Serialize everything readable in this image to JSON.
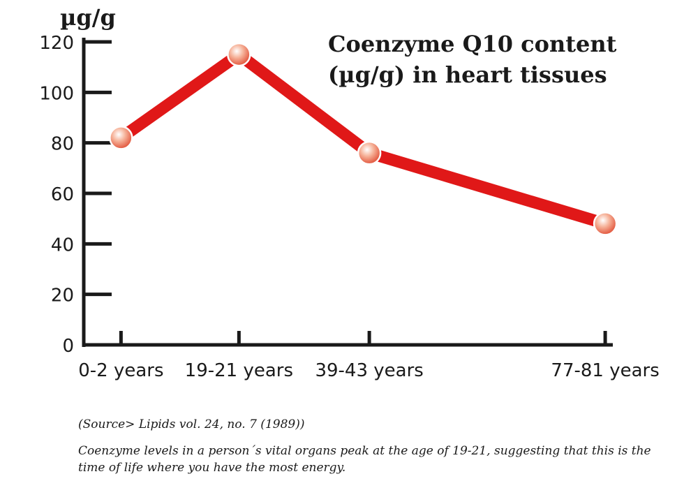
{
  "chart_data": {
    "type": "line",
    "title_lines": [
      "Coenzyme Q10 content",
      "(µg/g) in heart tissues"
    ],
    "ylabel": "µg/g",
    "xlabel": "",
    "categories": [
      "0-2 years",
      "19-21 years",
      "39-43 years",
      "77-81 years"
    ],
    "x_positions_years": [
      1,
      20,
      41,
      79
    ],
    "x_range_years": [
      -5,
      80
    ],
    "values": [
      82,
      115,
      76,
      48
    ],
    "ylim": [
      0,
      120
    ],
    "yticks": [
      0,
      20,
      40,
      60,
      80,
      100,
      120
    ],
    "grid": false,
    "legend": "none",
    "colors": {
      "line": "#e01818",
      "marker": "#f08a70",
      "axis": "#1a1a1a"
    }
  },
  "captions": {
    "source": "(Source> Lipids vol. 24, no. 7 (1989))",
    "note": "Coenzyme levels in a person´s vital organs peak at the age of 19-21, suggesting that this is the time of life where you have the most energy."
  }
}
